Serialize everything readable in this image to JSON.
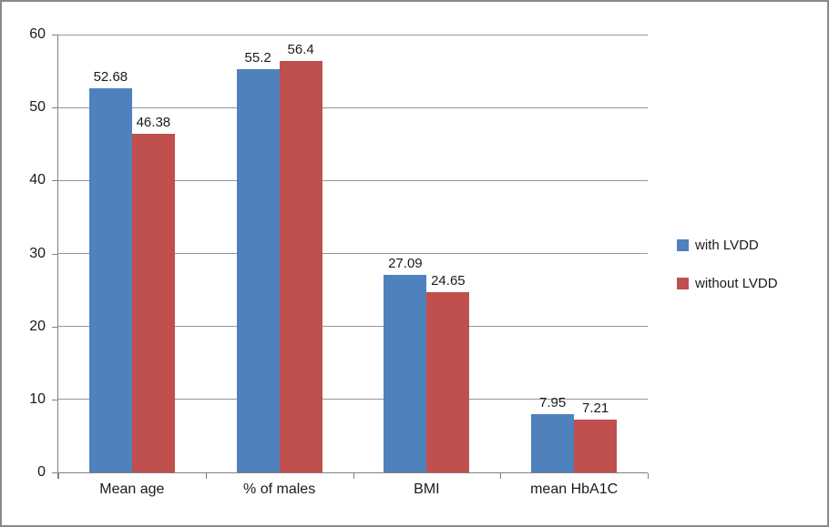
{
  "chart_data": {
    "type": "bar",
    "title": "",
    "xlabel": "",
    "ylabel": "",
    "categories": [
      "Mean age",
      "% of males",
      "BMI",
      "mean HbA1C"
    ],
    "series": [
      {
        "name": "with LVDD",
        "color": "#4F81BD",
        "values": [
          52.68,
          55.2,
          27.09,
          7.95
        ],
        "labels": [
          "52.68",
          "55.2",
          "27.09",
          "7.95"
        ]
      },
      {
        "name": "without LVDD",
        "color": "#C0504D",
        "values": [
          46.38,
          56.4,
          24.65,
          7.21
        ],
        "labels": [
          "46.38",
          "56.4",
          "24.65",
          "7.21"
        ]
      }
    ],
    "ylim": [
      0,
      60
    ],
    "yticks": [
      "0",
      "10",
      "20",
      "30",
      "40",
      "50",
      "60"
    ],
    "grid": true,
    "legend_position": "right",
    "data_labels": true
  },
  "style": {
    "gridline_color": "#969696",
    "axis_color": "#808080",
    "text_color": "#1a1a1a",
    "border_color": "#898989",
    "background": "#ffffff"
  }
}
